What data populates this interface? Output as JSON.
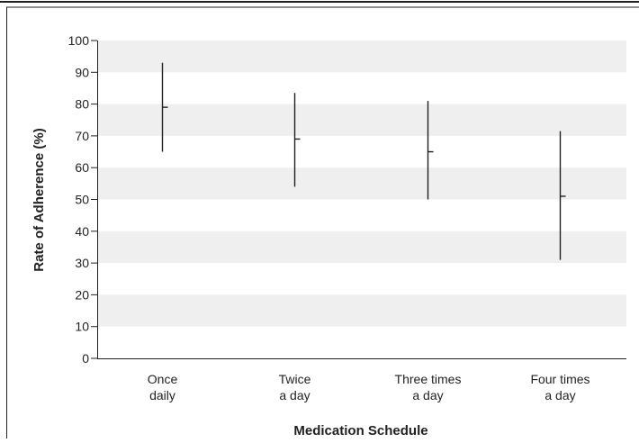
{
  "chart_data": {
    "type": "range",
    "title": "",
    "xlabel": "Medication Schedule",
    "ylabel": "Rate of Adherence (%)",
    "ylim": [
      0,
      100
    ],
    "yticks": [
      0,
      10,
      20,
      30,
      40,
      50,
      60,
      70,
      80,
      90,
      100
    ],
    "grid": "alternating horizontal bands",
    "categories": [
      [
        "Once",
        "daily"
      ],
      [
        "Twice",
        "a day"
      ],
      [
        "Three times",
        "a day"
      ],
      [
        "Four times",
        "a day"
      ]
    ],
    "series": [
      {
        "low": [
          65,
          54,
          50,
          31
        ],
        "mid": [
          79,
          69,
          65,
          51
        ],
        "high": [
          93,
          83.5,
          81,
          71.5
        ]
      }
    ],
    "colors": {
      "band": "#efefef",
      "line": "#231f20",
      "frame": "#231f20"
    }
  }
}
